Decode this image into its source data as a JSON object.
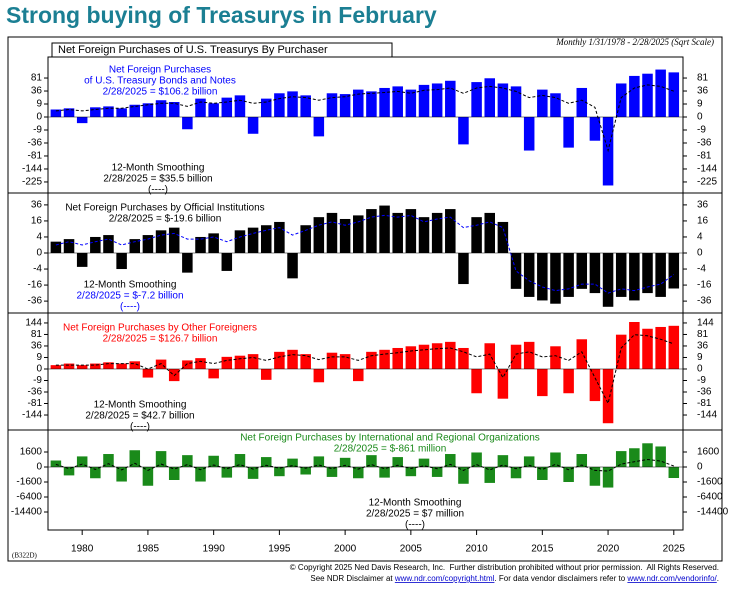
{
  "chart_data": {
    "type": "bar",
    "scale": "sqrt",
    "title": "Strong buying of Treasurys in February",
    "chart_title": "Net Foreign Purchases of U.S. Treasurys By Purchaser",
    "subtitle": "Monthly 1/31/1978 - 2/28/2025 (Sqrt Scale)",
    "chart_id": "(B322D)",
    "footer": [
      "© Copyright 2025 Ned Davis Research, Inc.  Further distribution prohibited without prior permission.  All Rights Reserved.",
      [
        "See NDR Disclaimer at ",
        "www.ndr.com/copyright.html",
        ". For data vendor disclaimers refer to ",
        "www.ndr.com/vendorinfo/",
        "."
      ]
    ],
    "x": [
      1978,
      1979,
      1980,
      1981,
      1982,
      1983,
      1984,
      1985,
      1986,
      1987,
      1988,
      1989,
      1990,
      1991,
      1992,
      1993,
      1994,
      1995,
      1996,
      1997,
      1998,
      1999,
      2000,
      2001,
      2002,
      2003,
      2004,
      2005,
      2006,
      2007,
      2008,
      2009,
      2010,
      2011,
      2012,
      2013,
      2014,
      2015,
      2016,
      2017,
      2018,
      2019,
      2020,
      2021,
      2022,
      2023,
      2024,
      2025
    ],
    "xlim": [
      1977.4,
      2025.7
    ],
    "xticks": [
      1980,
      1985,
      1990,
      1995,
      2000,
      2005,
      2010,
      2015,
      2020,
      2025
    ],
    "panels": [
      {
        "ylim": [
          -308,
          192
        ],
        "yticks": [
          81,
          36,
          9,
          0,
          -9,
          -36,
          -81,
          -144,
          -225
        ],
        "series": [
          {
            "name": [
              "Net Foreign Purchases",
              "of U.S. Treasury Bonds and Notes"
            ],
            "note": "2/28/2025 = $106.2 billion",
            "color": "#0000ff",
            "values": [
              3,
              4,
              -2,
              5,
              6,
              4,
              8,
              10,
              15,
              12,
              -8,
              18,
              10,
              20,
              25,
              -15,
              18,
              30,
              35,
              25,
              -20,
              30,
              28,
              40,
              35,
              45,
              50,
              40,
              55,
              60,
              70,
              -40,
              65,
              80,
              60,
              50,
              -60,
              40,
              30,
              -50,
              45,
              -30,
              -250,
              60,
              90,
              100,
              120,
              106.2
            ]
          },
          {
            "name": [
              "12-Month Smoothing"
            ],
            "note": "2/28/2025 = $35.5 billion",
            "symbol": "(----)",
            "color": "#000000",
            "dashed": true,
            "values": [
              2,
              3,
              2,
              3,
              4,
              4,
              6,
              8,
              10,
              10,
              6,
              12,
              10,
              12,
              15,
              10,
              12,
              18,
              22,
              20,
              15,
              20,
              22,
              28,
              30,
              32,
              35,
              30,
              38,
              40,
              45,
              30,
              45,
              50,
              45,
              35,
              20,
              25,
              20,
              10,
              15,
              5,
              -60,
              20,
              45,
              55,
              50,
              35.5
            ]
          }
        ]
      },
      {
        "ylim": [
          -56,
          56
        ],
        "yticks": [
          36,
          16,
          4,
          0,
          -4,
          -16,
          -36
        ],
        "series": [
          {
            "name": [
              "Net Foreign Purchases by Official Institutions"
            ],
            "note": "2/28/2025 = $-19.6 billion",
            "color": "#000000",
            "values": [
              2,
              3,
              -3,
              4,
              5,
              -4,
              3,
              5,
              8,
              10,
              -6,
              4,
              6,
              -5,
              8,
              10,
              12,
              15,
              -10,
              12,
              20,
              25,
              18,
              22,
              30,
              35,
              25,
              30,
              20,
              25,
              30,
              -15,
              20,
              25,
              15,
              -20,
              -30,
              -35,
              -40,
              -30,
              -20,
              -25,
              -45,
              -30,
              -35,
              -25,
              -30,
              -19.6
            ]
          },
          {
            "name": [
              "12-Month Smoothing"
            ],
            "note": "2/28/2025 = $-7.2 billion",
            "symbol": "(----)",
            "color": "#0000ff",
            "dashed": true,
            "values": [
              1,
              2,
              1,
              2,
              3,
              1,
              2,
              3,
              5,
              6,
              3,
              3,
              4,
              2,
              4,
              6,
              8,
              10,
              5,
              8,
              12,
              15,
              12,
              15,
              20,
              22,
              20,
              22,
              15,
              18,
              20,
              10,
              12,
              15,
              10,
              -5,
              -12,
              -18,
              -22,
              -20,
              -15,
              -15,
              -25,
              -20,
              -22,
              -18,
              -15,
              -7.2
            ]
          }
        ]
      },
      {
        "ylim": [
          -253,
          213
        ],
        "yticks": [
          144,
          81,
          36,
          9,
          0,
          -9,
          -36,
          -81,
          -144
        ],
        "series": [
          {
            "name": [
              "Net Foreign Purchases by Other Foreigners"
            ],
            "note": "2/28/2025 = $126.7 billion",
            "color": "#ff0000",
            "values": [
              1,
              2,
              1,
              2,
              3,
              2,
              4,
              -5,
              6,
              -10,
              5,
              8,
              -6,
              10,
              12,
              15,
              -8,
              20,
              25,
              15,
              -12,
              18,
              15,
              -10,
              20,
              25,
              30,
              35,
              40,
              45,
              50,
              30,
              -40,
              45,
              -60,
              40,
              50,
              -50,
              35,
              -40,
              60,
              -70,
              -200,
              80,
              150,
              110,
              120,
              126.7
            ]
          },
          {
            "name": [
              "12-Month Smoothing"
            ],
            "note": "2/28/2025 = $42.7 billion",
            "symbol": "(----)",
            "color": "#000000",
            "dashed": true,
            "values": [
              1,
              1,
              1,
              1,
              2,
              2,
              2,
              0,
              2,
              -3,
              2,
              4,
              2,
              5,
              7,
              9,
              5,
              10,
              14,
              12,
              6,
              10,
              10,
              5,
              12,
              15,
              18,
              22,
              25,
              28,
              30,
              20,
              10,
              15,
              -5,
              15,
              20,
              10,
              12,
              5,
              20,
              -5,
              -80,
              30,
              80,
              75,
              60,
              42.7
            ]
          }
        ]
      },
      {
        "ylim": [
          -28224,
          9740
        ],
        "yticks": [
          1600,
          0,
          -1600,
          -6400,
          -14400
        ],
        "series": [
          {
            "name": [
              "Net Foreign Purchases by International and Regional Organizations"
            ],
            "note": "2/28/2025 = $-861 million",
            "color": "#1a8a1a",
            "values": [
              300,
              -500,
              800,
              -900,
              1200,
              -1500,
              2000,
              -2500,
              1800,
              -1200,
              1000,
              -1500,
              900,
              -800,
              1200,
              -1000,
              700,
              -600,
              500,
              -400,
              800,
              -700,
              600,
              -900,
              1000,
              -800,
              700,
              -600,
              500,
              -700,
              1200,
              -2000,
              1500,
              -1800,
              1000,
              -900,
              800,
              -1200,
              1500,
              -1600,
              1200,
              -2500,
              -3000,
              1800,
              2500,
              4000,
              3000,
              -861
            ]
          },
          {
            "name": [
              "12-Month Smoothing"
            ],
            "note": "2/28/2025 = $7 million",
            "symbol": "(----)",
            "color": "#000000",
            "dashed": true,
            "values": [
              50,
              -20,
              60,
              -40,
              80,
              -60,
              100,
              -80,
              60,
              -30,
              40,
              -50,
              30,
              -20,
              40,
              -30,
              20,
              -10,
              15,
              -10,
              30,
              -20,
              20,
              -30,
              40,
              -20,
              20,
              -15,
              10,
              -20,
              50,
              -80,
              40,
              -60,
              30,
              -20,
              20,
              -40,
              50,
              -50,
              30,
              -80,
              -120,
              60,
              200,
              400,
              250,
              7
            ]
          }
        ]
      }
    ]
  }
}
